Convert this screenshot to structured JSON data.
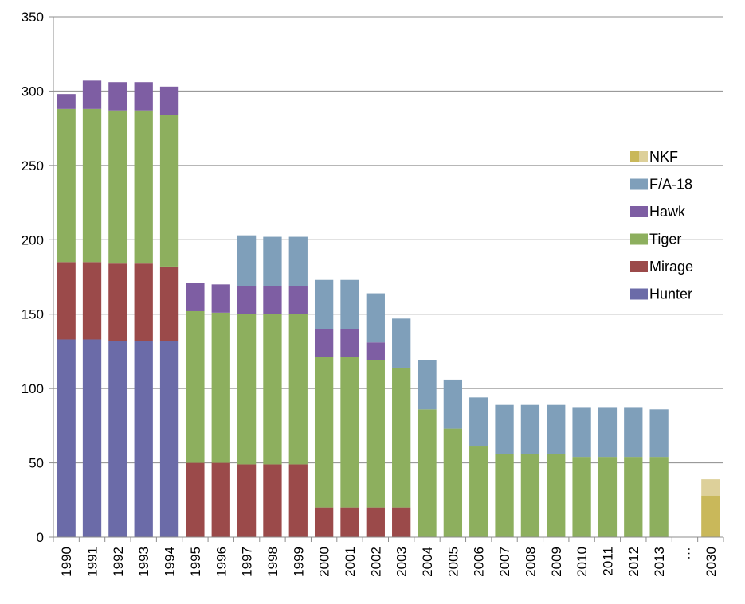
{
  "chart_data": {
    "type": "bar",
    "stacked": true,
    "categories": [
      "1990",
      "1991",
      "1992",
      "1993",
      "1994",
      "1995",
      "1996",
      "1997",
      "1998",
      "1999",
      "2000",
      "2001",
      "2002",
      "2003",
      "2004",
      "2005",
      "2006",
      "2007",
      "2008",
      "2009",
      "2010",
      "2011",
      "2012",
      "2013",
      "…",
      "2030"
    ],
    "ylim": [
      0,
      350
    ],
    "yticks": [
      0,
      50,
      100,
      150,
      200,
      250,
      300,
      350
    ],
    "grid": true,
    "legend_position": "right",
    "series": [
      {
        "name": "Hunter",
        "color": "#6B6BA8",
        "values": [
          133,
          133,
          132,
          132,
          132,
          0,
          0,
          0,
          0,
          0,
          0,
          0,
          0,
          0,
          0,
          0,
          0,
          0,
          0,
          0,
          0,
          0,
          0,
          0,
          null,
          0
        ]
      },
      {
        "name": "Mirage",
        "color": "#9B4A4A",
        "values": [
          52,
          52,
          52,
          52,
          50,
          50,
          50,
          49,
          49,
          49,
          20,
          20,
          20,
          20,
          0,
          0,
          0,
          0,
          0,
          0,
          0,
          0,
          0,
          0,
          null,
          0
        ]
      },
      {
        "name": "Tiger",
        "color": "#8DAF5E",
        "values": [
          103,
          103,
          103,
          103,
          102,
          102,
          101,
          101,
          101,
          101,
          101,
          101,
          99,
          94,
          86,
          73,
          61,
          56,
          56,
          56,
          54,
          54,
          54,
          54,
          null,
          0
        ]
      },
      {
        "name": "Hawk",
        "color": "#7E5EA3",
        "values": [
          10,
          19,
          19,
          19,
          19,
          19,
          19,
          19,
          19,
          19,
          19,
          19,
          12,
          0,
          0,
          0,
          0,
          0,
          0,
          0,
          0,
          0,
          0,
          0,
          null,
          0
        ]
      },
      {
        "name": "F/A-18",
        "color": "#7F9FBA",
        "values": [
          0,
          0,
          0,
          0,
          0,
          0,
          0,
          34,
          33,
          33,
          33,
          33,
          33,
          33,
          33,
          33,
          33,
          33,
          33,
          33,
          33,
          33,
          33,
          32,
          null,
          0
        ]
      },
      {
        "name": "NKF",
        "color": "#C9B85A",
        "secondary_color": "#DDD09A",
        "values": [
          0,
          0,
          0,
          0,
          0,
          0,
          0,
          0,
          0,
          0,
          0,
          0,
          0,
          0,
          0,
          0,
          0,
          0,
          0,
          0,
          0,
          0,
          0,
          0,
          null,
          39
        ],
        "split_values": [
          0,
          0,
          0,
          0,
          0,
          0,
          0,
          0,
          0,
          0,
          0,
          0,
          0,
          0,
          0,
          0,
          0,
          0,
          0,
          0,
          0,
          0,
          0,
          0,
          null,
          28
        ]
      }
    ],
    "legend_order": [
      "NKF",
      "F/A-18",
      "Hawk",
      "Tiger",
      "Mirage",
      "Hunter"
    ]
  }
}
